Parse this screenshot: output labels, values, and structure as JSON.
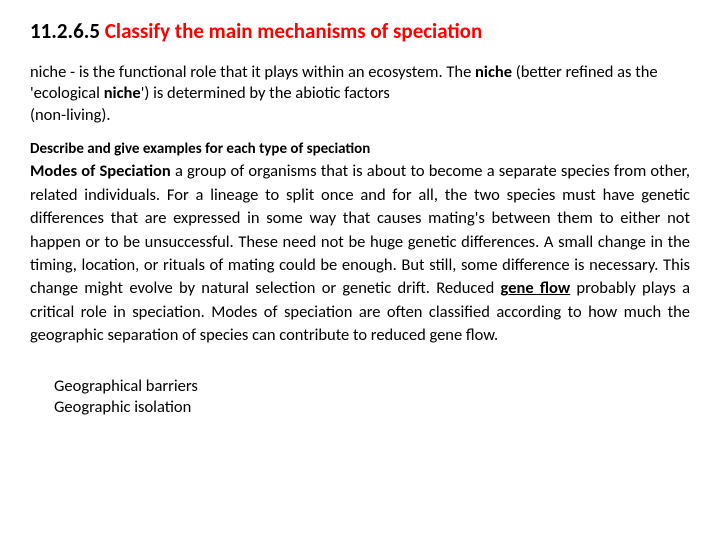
{
  "title": {
    "number": "11.2.6.5",
    "text": "Classify the main mechanisms of speciation"
  },
  "niche": {
    "prefix": "niche -  is the functional role that it plays within an ecosystem. The ",
    "bold1": "niche",
    "mid": " (better refined as the 'ecological ",
    "bold2": "niche",
    "suffix": "') is determined by the abiotic factors",
    "line2": "(non-living)."
  },
  "subheading": "Describe and give examples for each type of speciation",
  "body": {
    "lead_bold": "Modes of Speciation",
    "part1": " a group of organisms that is about to become a separate species from other, related individuals.  For a lineage to split once and for all, the two species must have genetic differences that are expressed in some way that causes mating's between them to either not happen or to be unsuccessful. These need not be huge genetic differences. A small change in the timing, location, or rituals of mating could be enough. But still, some difference is necessary. This change might evolve by natural selection or genetic drift.  Reduced ",
    "gene_flow": "gene flow",
    "part2": " probably plays a critical role in speciation. Modes of speciation are often classified according to how much the geographic separation of species can contribute to reduced gene flow."
  },
  "list": {
    "item1": "Geographical barriers",
    "item2": "Geographic isolation"
  }
}
